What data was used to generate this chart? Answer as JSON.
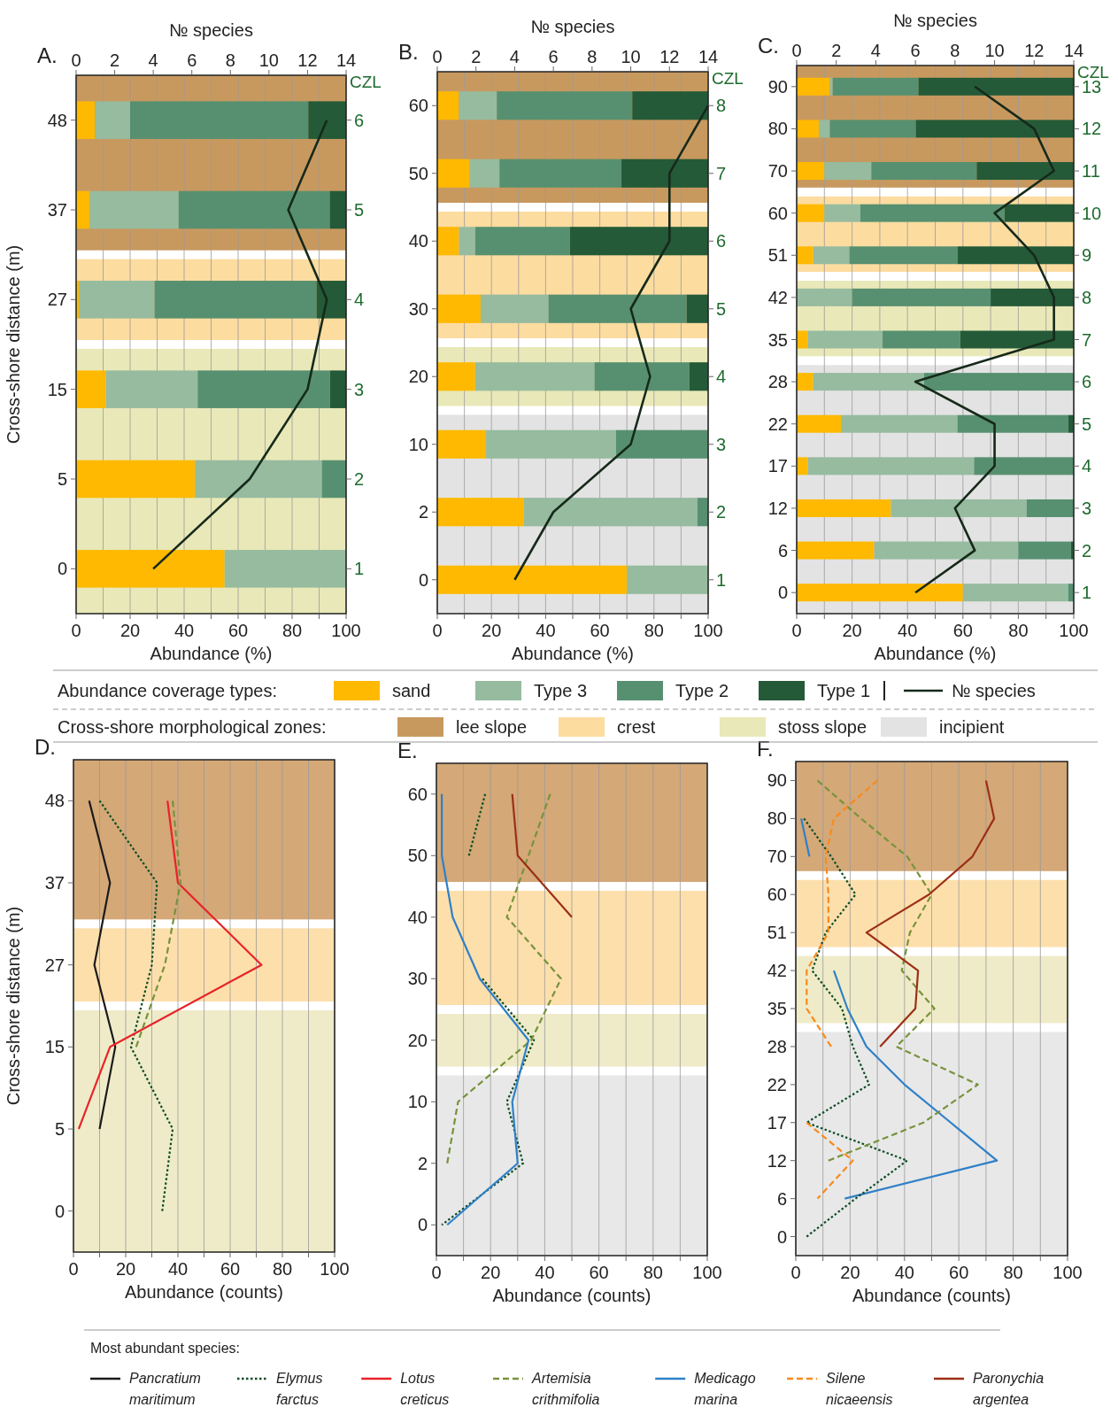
{
  "chart_data": [
    {
      "type": "bar",
      "title": "A.",
      "orientation": "horizontal",
      "stacked": true,
      "grid": "x",
      "legend": "bottom",
      "legend_title": "Abundance coverage types:",
      "xlabel": "Abundance (%)",
      "x2label": "№ species",
      "ylabel": "Cross-shore distance (m)",
      "y2label": "CZL",
      "categories": [
        "48",
        "37",
        "27",
        "15",
        "5",
        "0"
      ],
      "xlim": [
        0,
        100
      ],
      "xticks": [
        0,
        {
          "value": 10,
          "label": null
        },
        20,
        {
          "value": 30,
          "label": null
        },
        40,
        {
          "value": 50,
          "label": null
        },
        60,
        {
          "value": 70,
          "label": null
        },
        80,
        {
          "value": 90,
          "label": null
        },
        100
      ],
      "x2lim": [
        0,
        14
      ],
      "x2ticks": [
        0,
        2,
        4,
        6,
        8,
        10,
        12,
        14
      ],
      "series": [
        {
          "name": "sand",
          "color": "#ffb900",
          "values": [
            7,
            5,
            1,
            11,
            44,
            55
          ]
        },
        {
          "name": "Type 3",
          "color": "#96bb9f",
          "values": [
            13,
            33,
            28,
            34,
            47,
            45
          ]
        },
        {
          "name": "Type 2",
          "color": "#579070",
          "values": [
            66,
            56,
            60,
            49,
            9,
            null
          ]
        },
        {
          "name": "Type 1",
          "color": "#245a38",
          "values": [
            14,
            6,
            11,
            6,
            null,
            null
          ]
        },
        {
          "name": "№ species",
          "type": "line",
          "axis": "x2",
          "color": "#16291a",
          "values": [
            13,
            11,
            13,
            12,
            9,
            4
          ]
        }
      ],
      "bands": [
        {
          "axis": "y",
          "from": "48",
          "to": "37",
          "label": "lee slope",
          "color": "#c8995f"
        },
        {
          "axis": "y",
          "from": "27",
          "to": "27",
          "label": "crest",
          "color": "#fddca0"
        },
        {
          "axis": "y",
          "from": "15",
          "to": "0",
          "label": "stoss slope",
          "color": "#e9e8b8"
        }
      ],
      "annotations": [
        "Cross-shore morphological zones:",
        "6",
        "5",
        "4",
        "3",
        "2",
        "1"
      ]
    },
    {
      "type": "bar",
      "title": "B.",
      "legend": "bottom",
      "orientation": "horizontal",
      "stacked": true,
      "grid": "x",
      "xlabel": "Abundance (%)",
      "x2label": "№ species",
      "y2label": "CZL",
      "categories": [
        "60",
        "50",
        "40",
        "30",
        "20",
        "10",
        "2",
        "0"
      ],
      "xlim": [
        0,
        100
      ],
      "xticks": [
        0,
        {
          "value": 10,
          "label": null
        },
        20,
        {
          "value": 30,
          "label": null
        },
        40,
        {
          "value": 50,
          "label": null
        },
        60,
        {
          "value": 70,
          "label": null
        },
        80,
        {
          "value": 90,
          "label": null
        },
        100
      ],
      "x2lim": [
        0,
        14
      ],
      "x2ticks": [
        0,
        2,
        4,
        6,
        8,
        10,
        12,
        14
      ],
      "series": [
        {
          "color": "#ffb900",
          "values": [
            8,
            12,
            8,
            16,
            14,
            18,
            32,
            70
          ]
        },
        {
          "color": "#96bb9f",
          "values": [
            14,
            11,
            6,
            25,
            44,
            48,
            64,
            30
          ]
        },
        {
          "color": "#579070",
          "values": [
            50,
            45,
            35,
            51,
            35,
            34,
            4,
            null
          ]
        },
        {
          "color": "#245a38",
          "values": [
            28,
            32,
            51,
            8,
            7,
            null,
            null,
            null
          ]
        },
        {
          "type": "line",
          "axis": "x2",
          "color": "#16291a",
          "values": [
            14,
            12,
            12,
            10,
            11,
            10,
            6,
            4
          ]
        }
      ],
      "bands": [
        {
          "axis": "y",
          "from": "60",
          "to": "50",
          "color": "#c8995f"
        },
        {
          "axis": "y",
          "from": "40",
          "to": "30",
          "color": "#fddca0"
        },
        {
          "axis": "y",
          "from": "20",
          "to": "20",
          "color": "#e9e8b8"
        },
        {
          "axis": "y",
          "from": "10",
          "to": "0",
          "label": "incipient",
          "color": "#e3e3e3"
        }
      ],
      "annotations": [
        "8",
        "7",
        "6",
        "5",
        "4",
        "3",
        "2",
        "1"
      ]
    },
    {
      "type": "bar",
      "title": "C.",
      "orientation": "horizontal",
      "stacked": true,
      "grid": "x",
      "xlabel": "Abundance (%)",
      "x2label": "№ species",
      "y2label": "CZL",
      "categories": [
        "90",
        "80",
        "70",
        "60",
        "51",
        "42",
        "35",
        "28",
        "22",
        "17",
        "12",
        "6",
        "0"
      ],
      "xlim": [
        0,
        100
      ],
      "xticks": [
        0,
        {
          "value": 10,
          "label": null
        },
        20,
        {
          "value": 30,
          "label": null
        },
        40,
        {
          "value": 50,
          "label": null
        },
        60,
        {
          "value": 70,
          "label": null
        },
        80,
        {
          "value": 90,
          "label": null
        },
        100
      ],
      "x2lim": [
        0,
        14
      ],
      "x2ticks": [
        0,
        2,
        4,
        6,
        8,
        10,
        12,
        14
      ],
      "series": [
        {
          "color": "#ffb900",
          "values": [
            12,
            8,
            10,
            10,
            6,
            null,
            4,
            6,
            16,
            4,
            34,
            28,
            60
          ]
        },
        {
          "color": "#96bb9f",
          "values": [
            1,
            4,
            17,
            13,
            13,
            20,
            27,
            40,
            42,
            60,
            49,
            52,
            38
          ]
        },
        {
          "color": "#579070",
          "values": [
            31,
            31,
            38,
            52,
            39,
            50,
            28,
            54,
            40,
            36,
            17,
            19,
            2
          ]
        },
        {
          "color": "#245a38",
          "values": [
            56,
            57,
            35,
            25,
            42,
            30,
            41,
            null,
            2,
            null,
            null,
            1,
            null
          ]
        },
        {
          "type": "line",
          "axis": "x2",
          "color": "#16291a",
          "values": [
            9,
            12,
            13,
            10,
            12,
            13,
            13,
            6,
            10,
            10,
            8,
            9,
            6
          ]
        }
      ],
      "bands": [
        {
          "axis": "y",
          "from": "90",
          "to": "70",
          "color": "#c8995f"
        },
        {
          "axis": "y",
          "from": "60",
          "to": "51",
          "color": "#fddca0"
        },
        {
          "axis": "y",
          "from": "42",
          "to": "35",
          "color": "#e9e8b8"
        },
        {
          "axis": "y",
          "from": "28",
          "to": "0",
          "color": "#e3e3e3"
        }
      ],
      "annotations": [
        "13",
        "12",
        "11",
        "10",
        "9",
        "8",
        "7",
        "6",
        "5",
        "4",
        "3",
        "2",
        "1"
      ]
    },
    {
      "type": "line",
      "title": "D.",
      "orientation": "horizontal",
      "grid": "x",
      "legend": "bottom",
      "legend_title": "Most abundant species:",
      "xlabel": "Abundance (counts)",
      "ylabel": "Cross-shore distance (m)",
      "categories": [
        "48",
        "37",
        "27",
        "15",
        "5",
        "0"
      ],
      "xlim": [
        0,
        100
      ],
      "xticks": [
        0,
        {
          "value": 10,
          "label": null
        },
        20,
        {
          "value": 30,
          "label": null
        },
        40,
        {
          "value": 50,
          "label": null
        },
        60,
        {
          "value": 70,
          "label": null
        },
        80,
        {
          "value": 90,
          "label": null
        },
        100
      ],
      "series": [
        {
          "name": "Pancratium maritimum",
          "color": "#1a1a1a",
          "line_style": "solid",
          "values": [
            6,
            14,
            8,
            16,
            10,
            null
          ]
        },
        {
          "name": "Elymus farctus",
          "color": "#0d4d25",
          "line_style": "dotted",
          "values": [
            10,
            32,
            30,
            22,
            38,
            34
          ]
        },
        {
          "name": "Lotus creticus",
          "color": "#e8232a",
          "line_style": "solid",
          "values": [
            36,
            40,
            72,
            14,
            2,
            null
          ]
        },
        {
          "name": "Artemisia crithmifolia",
          "color": "#77933c",
          "line_style": "dashed",
          "values": [
            38,
            41,
            35,
            24,
            null,
            null
          ]
        }
      ],
      "bands": [
        {
          "axis": "y",
          "from": "48",
          "to": "37",
          "color": "#d4a877"
        },
        {
          "axis": "y",
          "from": "27",
          "to": "27",
          "color": "#fddfac"
        },
        {
          "axis": "y",
          "from": "15",
          "to": "0",
          "color": "#efebc8"
        }
      ]
    },
    {
      "type": "line",
      "title": "E.",
      "legend": "bottom",
      "orientation": "horizontal",
      "grid": "x",
      "xlabel": "Abundance (counts)",
      "categories": [
        "60",
        "50",
        "40",
        "30",
        "20",
        "10",
        "2",
        "0"
      ],
      "xlim": [
        0,
        100
      ],
      "xticks": [
        0,
        {
          "value": 10,
          "label": null
        },
        20,
        {
          "value": 30,
          "label": null
        },
        40,
        {
          "value": 50,
          "label": null
        },
        60,
        {
          "value": 70,
          "label": null
        },
        80,
        {
          "value": 90,
          "label": null
        },
        100
      ],
      "series": [
        {
          "color": "#0d4d25",
          "line_style": "dotted",
          "values": [
            18,
            12,
            null,
            17,
            36,
            26,
            32,
            2
          ]
        },
        {
          "color": "#77933c",
          "line_style": "dashed",
          "values": [
            42,
            34,
            26,
            46,
            35,
            8,
            4,
            null
          ]
        },
        {
          "name": "Medicago marina",
          "color": "#2f80c8",
          "line_style": "solid",
          "values": [
            2,
            2,
            6,
            16,
            34,
            28,
            30,
            4
          ]
        },
        {
          "color": "#9c2f17",
          "line_style": "solid",
          "values": [
            28,
            30,
            50,
            null,
            null,
            null,
            null,
            null
          ]
        }
      ],
      "bands": [
        {
          "axis": "y",
          "from": "60",
          "to": "50",
          "color": "#d4a877"
        },
        {
          "axis": "y",
          "from": "40",
          "to": "30",
          "color": "#fddfac"
        },
        {
          "axis": "y",
          "from": "20",
          "to": "20",
          "color": "#efebc8"
        },
        {
          "axis": "y",
          "from": "10",
          "to": "0",
          "color": "#e8e8e8"
        }
      ]
    },
    {
      "type": "line",
      "title": "F.",
      "legend": "bottom",
      "orientation": "horizontal",
      "grid": "x",
      "xlabel": "Abundance (counts)",
      "categories": [
        "90",
        "80",
        "70",
        "60",
        "51",
        "42",
        "35",
        "28",
        "22",
        "17",
        "12",
        "6",
        "0"
      ],
      "xlim": [
        0,
        100
      ],
      "xticks": [
        0,
        {
          "value": 10,
          "label": null
        },
        20,
        {
          "value": 30,
          "label": null
        },
        40,
        {
          "value": 50,
          "label": null
        },
        60,
        {
          "value": 70,
          "label": null
        },
        80,
        {
          "value": 90,
          "label": null
        },
        100
      ],
      "series": [
        {
          "color": "#2f80c8",
          "line_style": "solid",
          "values": [
            null,
            2,
            5,
            null,
            null,
            14,
            19,
            26,
            40,
            57,
            74,
            18,
            null
          ]
        },
        {
          "color": "#0d4d25",
          "line_style": "dotted",
          "values": [
            null,
            3,
            13,
            22,
            11,
            6,
            17,
            21,
            27,
            4,
            41,
            22,
            4
          ]
        },
        {
          "color": "#77933c",
          "line_style": "dashed",
          "values": [
            8,
            24,
            41,
            50,
            42,
            39,
            51,
            37,
            67,
            47,
            12,
            null,
            null
          ]
        },
        {
          "name": "Silene nicaeensis",
          "color": "#f98a1c",
          "line_style": "dashed",
          "values": [
            30,
            14,
            11,
            12,
            12,
            4,
            4,
            13,
            null,
            4,
            21,
            8,
            null
          ]
        },
        {
          "name": "Paronychia argentea",
          "color": "#9c2f17",
          "line_style": "solid",
          "values": [
            70,
            73,
            65,
            49,
            26,
            45,
            44,
            31,
            null,
            null,
            null,
            null,
            null
          ]
        }
      ],
      "bands": [
        {
          "axis": "y",
          "from": "90",
          "to": "70",
          "color": "#d4a877"
        },
        {
          "axis": "y",
          "from": "60",
          "to": "51",
          "color": "#fddfac"
        },
        {
          "axis": "y",
          "from": "42",
          "to": "35",
          "color": "#efebc8"
        },
        {
          "axis": "y",
          "from": "28",
          "to": "0",
          "color": "#e8e8e8"
        }
      ]
    }
  ]
}
